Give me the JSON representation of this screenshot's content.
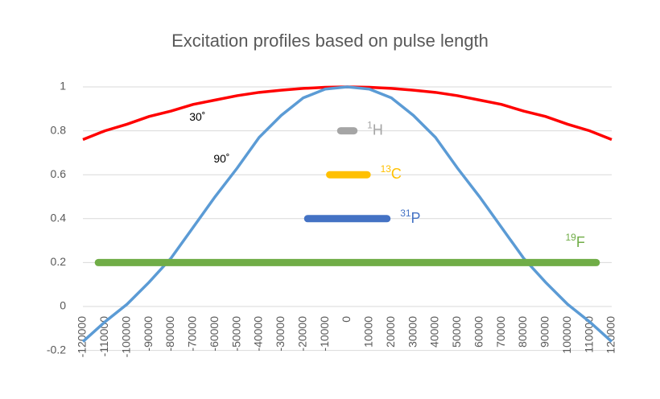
{
  "chart_data": {
    "type": "line",
    "title": "Excitation profiles based on pulse length",
    "x": [
      -120000,
      -110000,
      -100000,
      -90000,
      -80000,
      -70000,
      -60000,
      -50000,
      -40000,
      -30000,
      -20000,
      -10000,
      0,
      10000,
      20000,
      30000,
      40000,
      50000,
      60000,
      70000,
      80000,
      90000,
      100000,
      110000,
      120000
    ],
    "series": [
      {
        "name": "30˚",
        "color": "#ff0000",
        "values": [
          0.76,
          0.8,
          0.83,
          0.865,
          0.89,
          0.92,
          0.94,
          0.96,
          0.975,
          0.985,
          0.993,
          0.998,
          1,
          0.998,
          0.993,
          0.985,
          0.975,
          0.96,
          0.94,
          0.92,
          0.89,
          0.865,
          0.83,
          0.8,
          0.76
        ]
      },
      {
        "name": "90˚",
        "color": "#5b9bd5",
        "values": [
          -0.16,
          -0.07,
          0.01,
          0.11,
          0.22,
          0.36,
          0.5,
          0.63,
          0.77,
          0.87,
          0.95,
          0.99,
          1,
          0.99,
          0.95,
          0.87,
          0.77,
          0.63,
          0.5,
          0.36,
          0.22,
          0.11,
          0.01,
          -0.07,
          -0.16
        ]
      }
    ],
    "ranges": [
      {
        "sup": "1",
        "name": "H",
        "color": "#a5a5a5",
        "x": [
          -3000,
          3000
        ],
        "y": 0.8
      },
      {
        "sup": "13",
        "name": "C",
        "color": "#ffc000",
        "x": [
          -8000,
          9000
        ],
        "y": 0.6
      },
      {
        "sup": "31",
        "name": "P",
        "color": "#4472c4",
        "x": [
          -18000,
          18000
        ],
        "y": 0.4
      },
      {
        "sup": "19",
        "name": "F",
        "color": "#70ad47",
        "x": [
          -113000,
          113000
        ],
        "y": 0.2
      }
    ],
    "xlim": [
      -120000,
      120000
    ],
    "xticks": [
      -120000,
      -110000,
      -100000,
      -90000,
      -80000,
      -70000,
      -60000,
      -50000,
      -40000,
      -30000,
      -20000,
      -10000,
      0,
      10000,
      20000,
      30000,
      40000,
      50000,
      60000,
      70000,
      80000,
      90000,
      100000,
      110000,
      120000
    ],
    "ylim": [
      -0.2,
      1
    ],
    "yticks": [
      -0.2,
      0,
      0.2,
      0.4,
      0.6,
      0.8,
      1
    ],
    "grid": true
  }
}
